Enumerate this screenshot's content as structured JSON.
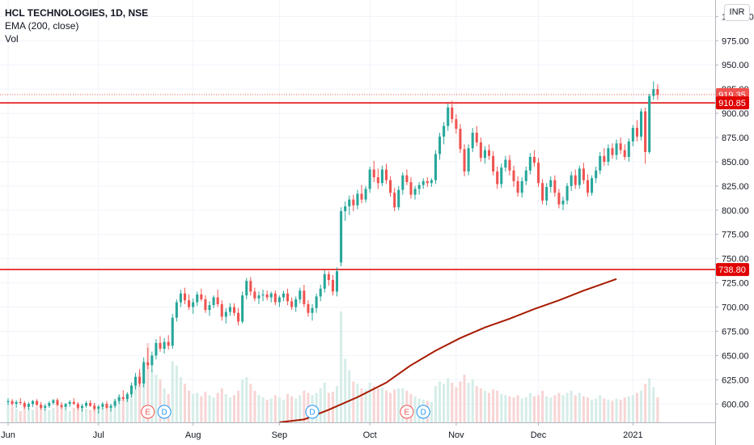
{
  "header": {
    "title": "HCL TECHNOLOGIES, 1D, NSE",
    "indicator": "EMA (200, close)",
    "volume": "Vol",
    "currency": "INR"
  },
  "colors": {
    "up": "#26a69a",
    "down": "#ef5350",
    "vol_up": "#d6ede8",
    "vol_down": "#f7d5d5",
    "ema": "#a81b00",
    "hline": "#e00000",
    "grid": "#f0f3fa"
  },
  "chart_data": {
    "type": "candlestick",
    "yaxis": {
      "range": [
        581,
        1017
      ],
      "ticks": [
        "1000.00",
        "975.00",
        "950.00",
        "925.00",
        "900.00",
        "875.00",
        "850.00",
        "825.00",
        "800.00",
        "775.00",
        "750.00",
        "725.00",
        "700.00",
        "675.00",
        "650.00",
        "625.00",
        "600.00"
      ]
    },
    "xaxis": {
      "range": [
        0,
        172
      ],
      "ticks": [
        {
          "label": "Jun",
          "x": 0
        },
        {
          "label": "Jul",
          "x": 22
        },
        {
          "label": "Aug",
          "x": 45
        },
        {
          "label": "Sep",
          "x": 66
        },
        {
          "label": "Oct",
          "x": 88
        },
        {
          "label": "Nov",
          "x": 109
        },
        {
          "label": "Dec",
          "x": 129
        },
        {
          "label": "2021",
          "x": 152
        }
      ]
    },
    "price_labels": [
      {
        "value": 919.35,
        "text": "919.35",
        "line": "dotted"
      },
      {
        "value": 910.85,
        "text": "910.85",
        "line": "solid"
      },
      {
        "value": 738.8,
        "text": "738.80",
        "line": "solid"
      }
    ],
    "ema": {
      "name": "EMA (200, close)",
      "points": [
        [
          66,
          581
        ],
        [
          72,
          584
        ],
        [
          78,
          594
        ],
        [
          85,
          607
        ],
        [
          92,
          622
        ],
        [
          98,
          640
        ],
        [
          104,
          655
        ],
        [
          110,
          668
        ],
        [
          116,
          679
        ],
        [
          122,
          688
        ],
        [
          128,
          698
        ],
        [
          134,
          707
        ],
        [
          140,
          717
        ],
        [
          148,
          729
        ]
      ]
    },
    "events": [
      {
        "label": "E",
        "x": 34,
        "kind": "earnings"
      },
      {
        "label": "D",
        "x": 38,
        "kind": "dividend"
      },
      {
        "label": "D",
        "x": 74,
        "kind": "dividend"
      },
      {
        "label": "E",
        "x": 97,
        "kind": "earnings"
      },
      {
        "label": "D",
        "x": 101,
        "kind": "dividend"
      }
    ],
    "volume_range": [
      0,
      10
    ],
    "candles": [
      [
        0,
        602,
        606,
        599,
        603,
        1.8
      ],
      [
        1,
        603,
        605,
        598,
        600,
        1.4
      ],
      [
        2,
        600,
        604,
        596,
        602,
        1.2
      ],
      [
        3,
        602,
        606,
        599,
        601,
        1.0
      ],
      [
        4,
        601,
        603,
        595,
        597,
        1.5
      ],
      [
        5,
        597,
        602,
        594,
        600,
        1.3
      ],
      [
        6,
        600,
        604,
        597,
        603,
        1.1
      ],
      [
        7,
        603,
        605,
        598,
        599,
        1.4
      ],
      [
        8,
        599,
        602,
        594,
        596,
        1.6
      ],
      [
        9,
        596,
        600,
        593,
        598,
        1.2
      ],
      [
        10,
        598,
        603,
        596,
        601,
        1.1
      ],
      [
        11,
        601,
        605,
        599,
        604,
        1.3
      ],
      [
        12,
        604,
        606,
        598,
        599,
        1.6
      ],
      [
        13,
        599,
        602,
        595,
        597,
        1.4
      ],
      [
        14,
        597,
        601,
        594,
        600,
        1.2
      ],
      [
        15,
        600,
        604,
        597,
        602,
        1.0
      ],
      [
        16,
        602,
        606,
        599,
        600,
        1.3
      ],
      [
        17,
        600,
        602,
        594,
        596,
        1.5
      ],
      [
        18,
        596,
        600,
        592,
        598,
        1.4
      ],
      [
        19,
        598,
        603,
        596,
        601,
        1.2
      ],
      [
        20,
        601,
        604,
        597,
        598,
        1.1
      ],
      [
        21,
        598,
        601,
        593,
        595,
        1.7
      ],
      [
        22,
        595,
        599,
        590,
        597,
        1.5
      ],
      [
        23,
        597,
        602,
        594,
        600,
        1.3
      ],
      [
        24,
        600,
        603,
        595,
        596,
        1.4
      ],
      [
        25,
        596,
        600,
        592,
        598,
        1.6
      ],
      [
        26,
        598,
        605,
        596,
        603,
        2.1
      ],
      [
        27,
        603,
        610,
        600,
        607,
        2.4
      ],
      [
        28,
        607,
        614,
        603,
        605,
        2.0
      ],
      [
        29,
        605,
        612,
        602,
        610,
        2.6
      ],
      [
        30,
        610,
        622,
        607,
        619,
        3.2
      ],
      [
        31,
        619,
        632,
        615,
        628,
        3.6
      ],
      [
        32,
        628,
        636,
        618,
        621,
        4.4
      ],
      [
        33,
        621,
        648,
        617,
        643,
        5.4
      ],
      [
        34,
        643,
        658,
        636,
        640,
        7.0
      ],
      [
        35,
        640,
        654,
        633,
        650,
        4.6
      ],
      [
        36,
        650,
        667,
        646,
        663,
        4.2
      ],
      [
        37,
        663,
        670,
        654,
        657,
        3.8
      ],
      [
        38,
        657,
        668,
        652,
        664,
        3.0
      ],
      [
        39,
        664,
        671,
        656,
        660,
        2.5
      ],
      [
        40,
        660,
        693,
        657,
        689,
        5.4
      ],
      [
        41,
        689,
        708,
        685,
        705,
        5.0
      ],
      [
        42,
        705,
        718,
        700,
        714,
        4.0
      ],
      [
        43,
        714,
        720,
        703,
        707,
        3.4
      ],
      [
        44,
        707,
        713,
        697,
        700,
        2.8
      ],
      [
        45,
        700,
        709,
        693,
        705,
        2.5
      ],
      [
        46,
        705,
        716,
        701,
        713,
        2.6
      ],
      [
        47,
        713,
        719,
        706,
        708,
        2.3
      ],
      [
        48,
        708,
        712,
        694,
        697,
        2.7
      ],
      [
        49,
        697,
        706,
        691,
        702,
        2.4
      ],
      [
        50,
        702,
        712,
        699,
        710,
        2.2
      ],
      [
        51,
        710,
        718,
        700,
        703,
        2.6
      ],
      [
        52,
        703,
        707,
        686,
        690,
        3.0
      ],
      [
        53,
        690,
        699,
        683,
        695,
        2.5
      ],
      [
        54,
        695,
        704,
        691,
        700,
        2.2
      ],
      [
        55,
        700,
        704,
        691,
        694,
        2.4
      ],
      [
        56,
        694,
        699,
        681,
        685,
        2.8
      ],
      [
        57,
        685,
        716,
        683,
        712,
        3.8
      ],
      [
        58,
        712,
        730,
        708,
        727,
        4.0
      ],
      [
        59,
        727,
        731,
        712,
        716,
        3.4
      ],
      [
        60,
        716,
        720,
        706,
        709,
        2.8
      ],
      [
        61,
        709,
        716,
        703,
        712,
        2.4
      ],
      [
        62,
        712,
        718,
        706,
        713,
        2.2
      ],
      [
        63,
        713,
        717,
        707,
        710,
        2.0
      ],
      [
        64,
        710,
        716,
        705,
        714,
        2.1
      ],
      [
        65,
        714,
        717,
        702,
        705,
        2.4
      ],
      [
        66,
        705,
        712,
        700,
        710,
        2.2
      ],
      [
        67,
        710,
        717,
        706,
        714,
        2.0
      ],
      [
        68,
        714,
        719,
        702,
        706,
        2.5
      ],
      [
        69,
        706,
        710,
        697,
        700,
        2.3
      ],
      [
        70,
        700,
        711,
        695,
        708,
        2.1
      ],
      [
        71,
        708,
        720,
        704,
        717,
        2.4
      ],
      [
        72,
        717,
        723,
        700,
        703,
        2.8
      ],
      [
        73,
        703,
        707,
        690,
        694,
        2.6
      ],
      [
        74,
        694,
        703,
        686,
        699,
        2.4
      ],
      [
        75,
        699,
        714,
        694,
        711,
        2.6
      ],
      [
        76,
        711,
        723,
        706,
        719,
        3.0
      ],
      [
        77,
        719,
        738,
        715,
        734,
        3.5
      ],
      [
        78,
        734,
        737,
        722,
        728,
        2.6
      ],
      [
        79,
        728,
        733,
        712,
        716,
        2.7
      ],
      [
        80,
        716,
        741,
        711,
        737,
        3.2
      ],
      [
        81,
        746,
        803,
        742,
        799,
        9.8
      ],
      [
        82,
        799,
        809,
        789,
        804,
        5.6
      ],
      [
        83,
        804,
        815,
        795,
        811,
        4.6
      ],
      [
        84,
        811,
        816,
        799,
        805,
        3.6
      ],
      [
        85,
        805,
        821,
        801,
        817,
        3.4
      ],
      [
        86,
        817,
        826,
        807,
        811,
        3.0
      ],
      [
        87,
        811,
        825,
        808,
        822,
        2.9
      ],
      [
        88,
        822,
        845,
        818,
        842,
        3.5
      ],
      [
        89,
        842,
        851,
        829,
        834,
        3.2
      ],
      [
        90,
        834,
        843,
        822,
        828,
        3.0
      ],
      [
        91,
        828,
        846,
        825,
        842,
        3.1
      ],
      [
        92,
        842,
        848,
        827,
        831,
        2.8
      ],
      [
        93,
        831,
        835,
        814,
        818,
        2.6
      ],
      [
        94,
        818,
        823,
        799,
        803,
        2.9
      ],
      [
        95,
        803,
        825,
        800,
        821,
        3.0
      ],
      [
        96,
        821,
        839,
        816,
        836,
        3.0
      ],
      [
        97,
        836,
        842,
        826,
        829,
        2.8
      ],
      [
        98,
        829,
        834,
        812,
        816,
        2.5
      ],
      [
        99,
        816,
        825,
        811,
        822,
        2.3
      ],
      [
        100,
        822,
        829,
        816,
        826,
        2.1
      ],
      [
        101,
        826,
        833,
        822,
        830,
        2.0
      ],
      [
        102,
        830,
        834,
        824,
        828,
        1.9
      ],
      [
        103,
        828,
        833,
        824,
        831,
        1.8
      ],
      [
        104,
        831,
        862,
        827,
        858,
        3.2
      ],
      [
        105,
        858,
        880,
        852,
        876,
        3.6
      ],
      [
        106,
        876,
        891,
        868,
        887,
        3.4
      ],
      [
        107,
        887,
        910,
        882,
        906,
        3.9
      ],
      [
        108,
        906,
        913,
        890,
        894,
        3.5
      ],
      [
        109,
        894,
        899,
        879,
        884,
        3.1
      ],
      [
        110,
        884,
        889,
        859,
        863,
        3.6
      ],
      [
        111,
        863,
        868,
        835,
        840,
        4.2
      ],
      [
        112,
        840,
        868,
        836,
        864,
        3.5
      ],
      [
        113,
        864,
        885,
        860,
        880,
        3.8
      ],
      [
        114,
        880,
        887,
        866,
        870,
        3.2
      ],
      [
        115,
        870,
        875,
        850,
        854,
        3.0
      ],
      [
        116,
        854,
        866,
        848,
        862,
        2.8
      ],
      [
        117,
        862,
        868,
        852,
        856,
        2.6
      ],
      [
        118,
        856,
        861,
        836,
        840,
        2.9
      ],
      [
        119,
        840,
        845,
        822,
        827,
        2.8
      ],
      [
        120,
        827,
        848,
        823,
        844,
        2.5
      ],
      [
        121,
        844,
        856,
        840,
        852,
        2.4
      ],
      [
        122,
        852,
        857,
        836,
        841,
        2.3
      ],
      [
        123,
        841,
        846,
        824,
        830,
        2.2
      ],
      [
        124,
        830,
        835,
        814,
        818,
        2.4
      ],
      [
        125,
        818,
        834,
        813,
        830,
        2.1
      ],
      [
        126,
        830,
        845,
        826,
        841,
        2.2
      ],
      [
        127,
        841,
        859,
        837,
        855,
        2.6
      ],
      [
        128,
        855,
        862,
        845,
        849,
        2.3
      ],
      [
        129,
        849,
        854,
        824,
        828,
        2.4
      ],
      [
        130,
        828,
        832,
        806,
        810,
        2.8
      ],
      [
        131,
        810,
        828,
        805,
        824,
        2.3
      ],
      [
        132,
        824,
        835,
        818,
        831,
        2.2
      ],
      [
        133,
        831,
        836,
        814,
        818,
        2.4
      ],
      [
        134,
        818,
        822,
        802,
        806,
        2.6
      ],
      [
        135,
        806,
        814,
        800,
        810,
        2.4
      ],
      [
        136,
        810,
        828,
        806,
        825,
        2.6
      ],
      [
        137,
        825,
        840,
        820,
        836,
        2.8
      ],
      [
        138,
        836,
        842,
        822,
        826,
        2.4
      ],
      [
        139,
        826,
        846,
        822,
        843,
        2.6
      ],
      [
        140,
        843,
        849,
        827,
        831,
        2.3
      ],
      [
        141,
        831,
        837,
        814,
        818,
        2.2
      ],
      [
        142,
        818,
        836,
        815,
        833,
        2.0
      ],
      [
        143,
        833,
        845,
        828,
        841,
        2.1
      ],
      [
        144,
        841,
        860,
        837,
        856,
        2.4
      ],
      [
        145,
        856,
        864,
        846,
        850,
        2.1
      ],
      [
        146,
        850,
        868,
        846,
        864,
        2.0
      ],
      [
        147,
        864,
        869,
        853,
        857,
        1.9
      ],
      [
        148,
        857,
        873,
        852,
        869,
        2.1
      ],
      [
        149,
        869,
        875,
        858,
        862,
        2.0
      ],
      [
        150,
        862,
        868,
        852,
        855,
        2.2
      ],
      [
        151,
        855,
        874,
        850,
        871,
        2.3
      ],
      [
        152,
        871,
        888,
        866,
        885,
        2.4
      ],
      [
        153,
        885,
        893,
        871,
        876,
        2.6
      ],
      [
        154,
        876,
        905,
        872,
        902,
        2.8
      ],
      [
        155,
        902,
        906,
        848,
        860,
        3.4
      ],
      [
        156,
        860,
        920,
        858,
        918,
        3.9
      ],
      [
        157,
        918,
        933,
        914,
        925,
        3.1
      ],
      [
        158,
        925,
        930,
        914,
        919,
        2.2
      ]
    ]
  }
}
